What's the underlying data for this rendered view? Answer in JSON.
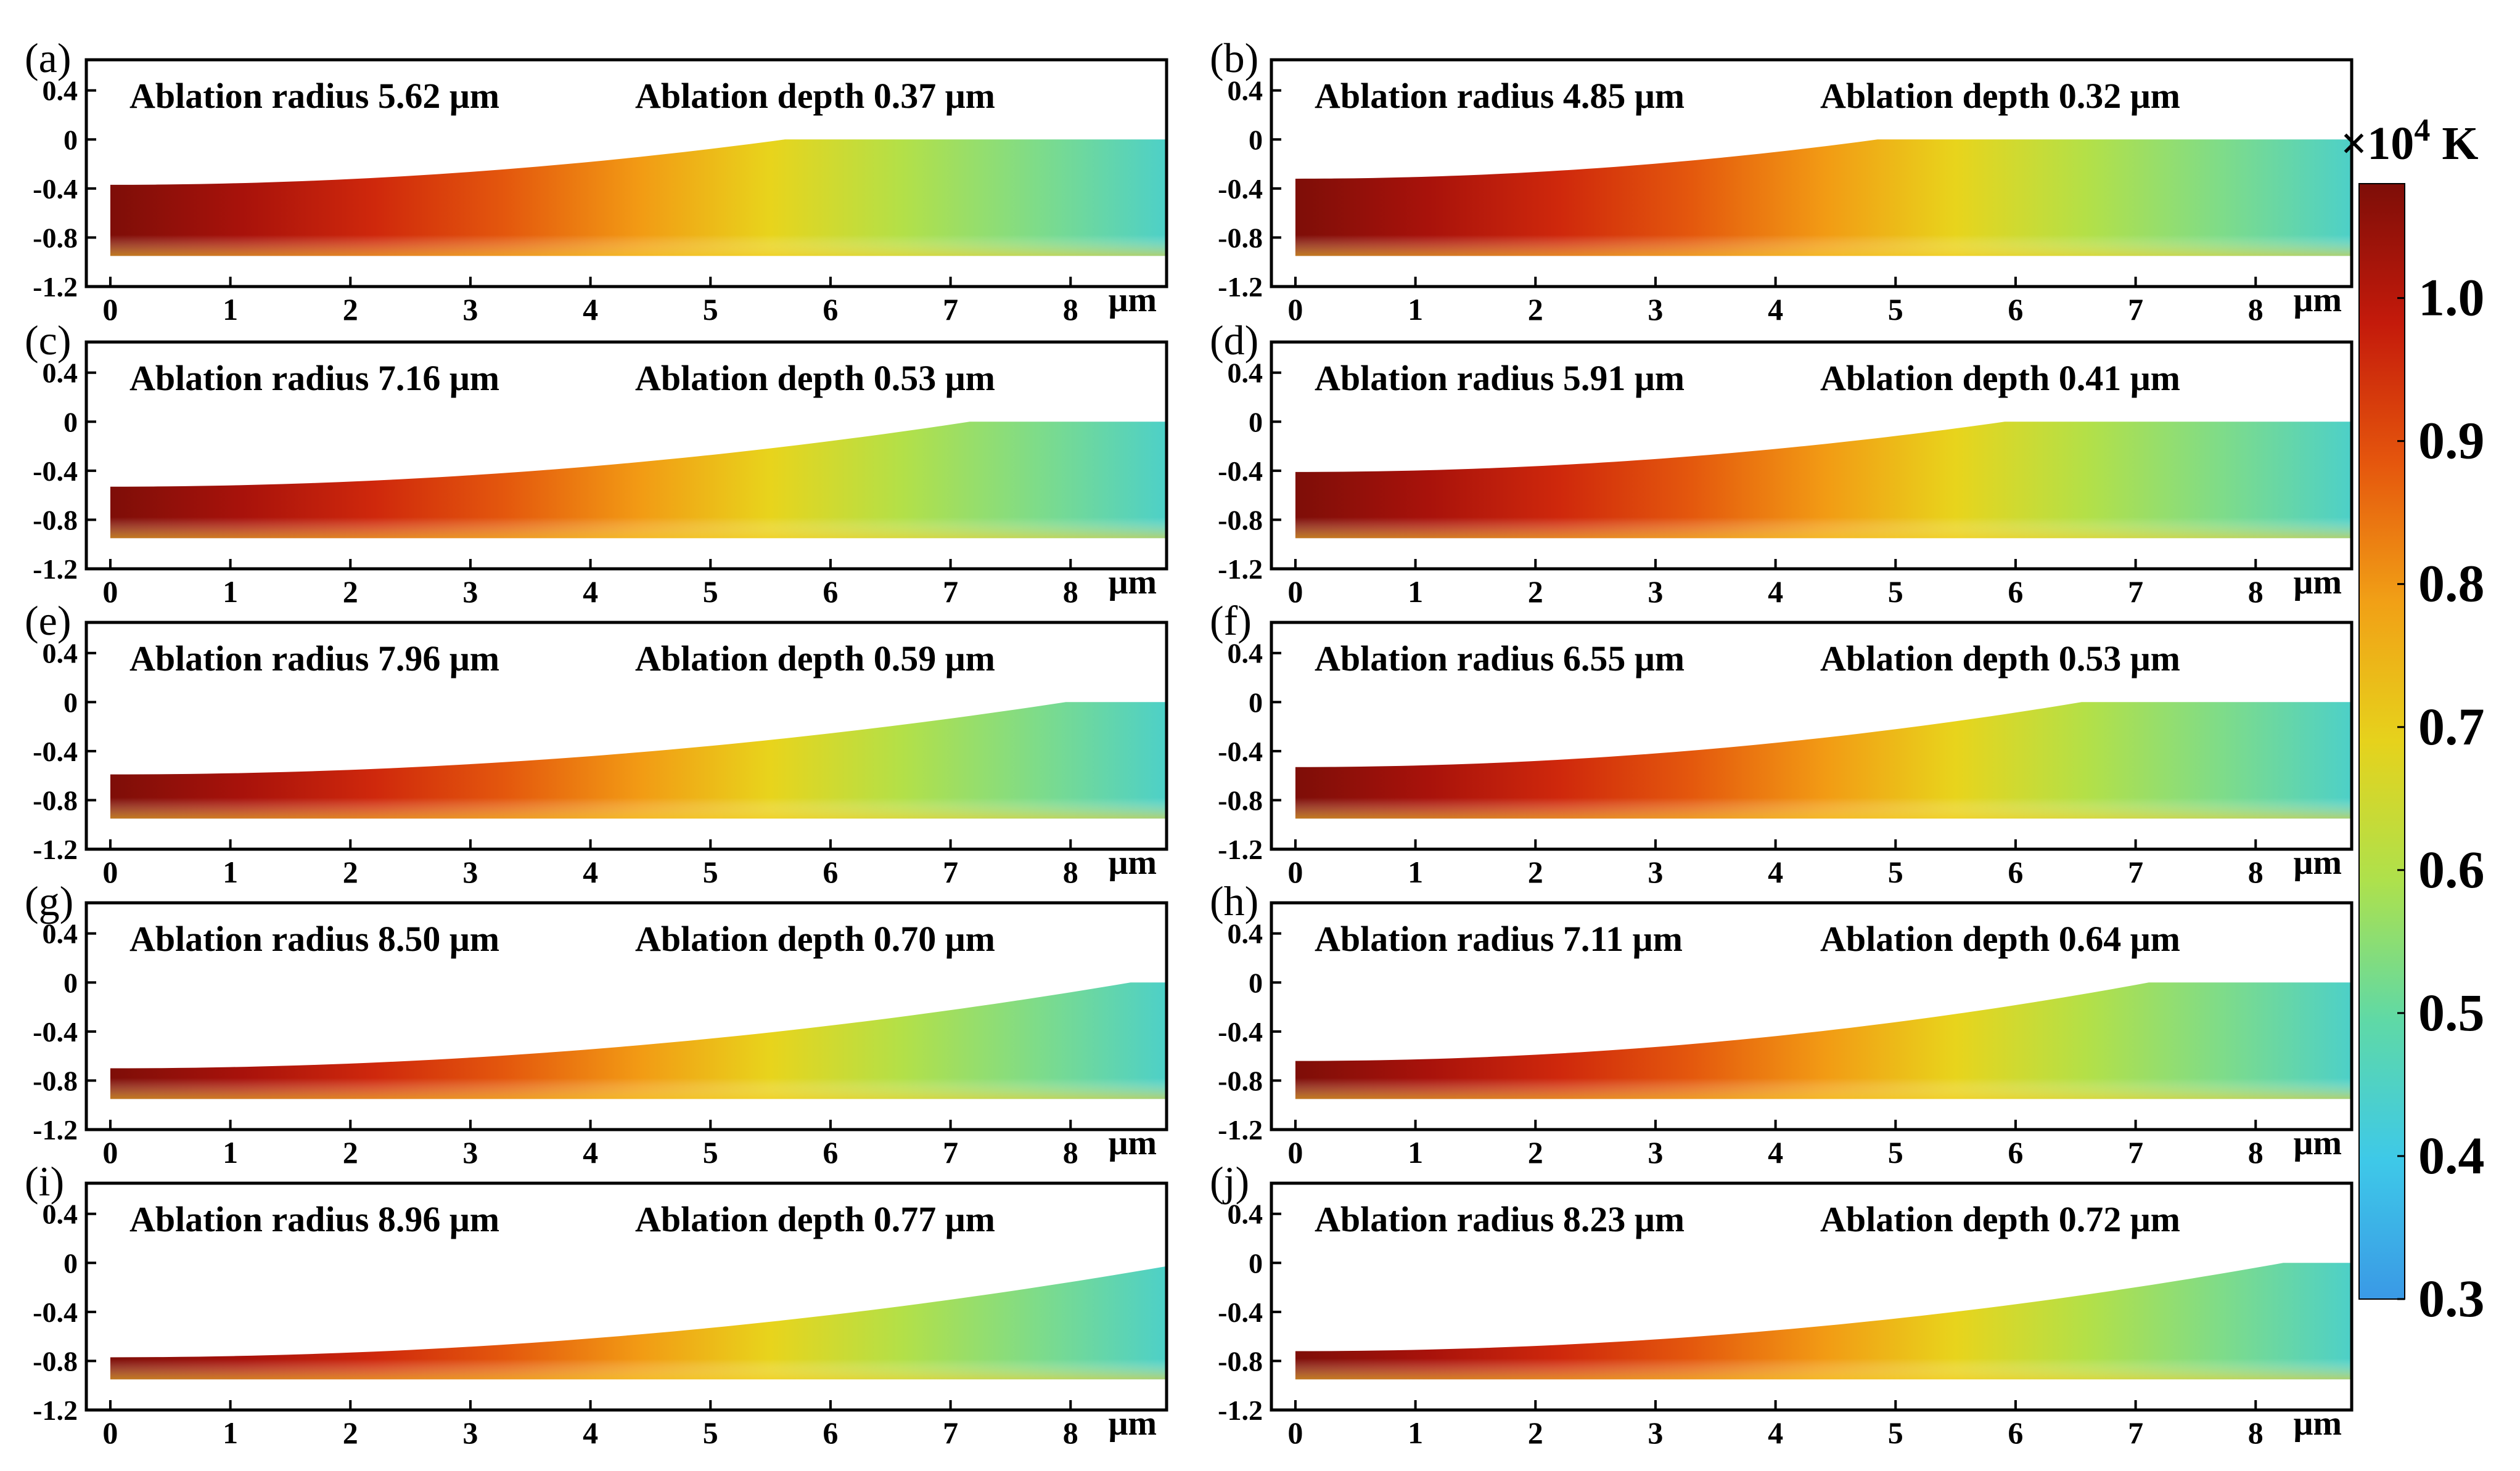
{
  "chart_data": {
    "type": "heatmap",
    "title": "",
    "xlabel": "μm",
    "xlim": [
      -0.2,
      8.8
    ],
    "ylim": [
      -1.2,
      0.65
    ],
    "x_ticks": [
      0,
      1,
      2,
      3,
      4,
      5,
      6,
      7,
      8
    ],
    "y_ticks": [
      0.4,
      0,
      -0.4,
      -0.8,
      -1.2
    ],
    "y_tick_labels": [
      "0.4",
      "0",
      "-0.4",
      "-0.8",
      "-1.2"
    ],
    "sample_bottom_depth": -0.95,
    "colorbar": {
      "unit_label": "×10",
      "unit_exponent": "4",
      "unit_suffix": " K",
      "range": [
        0.3,
        1.08
      ],
      "ticks": [
        1.0,
        0.9,
        0.8,
        0.7,
        0.6,
        0.5,
        0.4,
        0.3
      ],
      "tick_labels": [
        "1.0",
        "0.9",
        "0.8",
        "0.7",
        "0.6",
        "0.5",
        "0.4",
        "0.3"
      ],
      "colormap": [
        "#3a99e6",
        "#3ec9e8",
        "#5fd9a6",
        "#aee14c",
        "#e6d21c",
        "#f1a016",
        "#e5560d",
        "#c41a0b",
        "#7e0e08"
      ]
    },
    "panels": [
      {
        "label": "(a)",
        "radius_text": "Ablation radius 5.62 μm",
        "depth_text": "Ablation depth 0.37 μm",
        "ablation_radius": 5.62,
        "ablation_depth": 0.37
      },
      {
        "label": "(b)",
        "radius_text": "Ablation radius 4.85 μm",
        "depth_text": "Ablation depth 0.32 μm",
        "ablation_radius": 4.85,
        "ablation_depth": 0.32
      },
      {
        "label": "(c)",
        "radius_text": "Ablation radius 7.16 μm",
        "depth_text": "Ablation depth 0.53 μm",
        "ablation_radius": 7.16,
        "ablation_depth": 0.53
      },
      {
        "label": "(d)",
        "radius_text": "Ablation radius 5.91 μm",
        "depth_text": "Ablation depth 0.41 μm",
        "ablation_radius": 5.91,
        "ablation_depth": 0.41
      },
      {
        "label": "(e)",
        "radius_text": "Ablation radius 7.96 μm",
        "depth_text": "Ablation depth 0.59 μm",
        "ablation_radius": 7.96,
        "ablation_depth": 0.59
      },
      {
        "label": "(f)",
        "radius_text": "Ablation radius 6.55 μm",
        "depth_text": "Ablation depth 0.53 μm",
        "ablation_radius": 6.55,
        "ablation_depth": 0.53
      },
      {
        "label": "(g)",
        "radius_text": "Ablation radius 8.50 μm",
        "depth_text": "Ablation depth 0.70 μm",
        "ablation_radius": 8.5,
        "ablation_depth": 0.7
      },
      {
        "label": "(h)",
        "radius_text": "Ablation radius 7.11 μm",
        "depth_text": "Ablation depth 0.64 μm",
        "ablation_radius": 7.11,
        "ablation_depth": 0.64
      },
      {
        "label": "(i)",
        "radius_text": "Ablation radius 8.96 μm",
        "depth_text": "Ablation depth 0.77 μm",
        "ablation_radius": 8.96,
        "ablation_depth": 0.77
      },
      {
        "label": "(j)",
        "radius_text": "Ablation radius 8.23 μm",
        "depth_text": "Ablation depth 0.72 μm",
        "ablation_radius": 8.23,
        "ablation_depth": 0.72
      }
    ]
  }
}
